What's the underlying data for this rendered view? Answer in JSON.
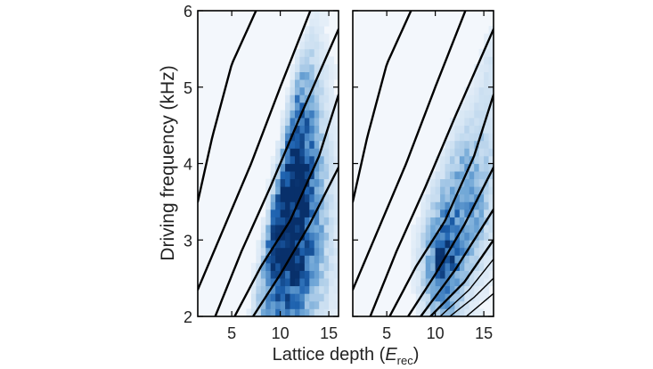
{
  "chart_data": {
    "type": "heatmap",
    "xlabel": "Lattice depth",
    "xlabel_sym": "E",
    "xlabel_sub": "rec",
    "ylabel": "Driving frequency (kHz)",
    "xlim": [
      1.5,
      16
    ],
    "ylim": [
      2,
      6
    ],
    "xticks": [
      5,
      10,
      15
    ],
    "yticks": [
      2,
      3,
      4,
      5,
      6
    ],
    "ytick_labels": [
      "2",
      "3",
      "4",
      "5",
      "6"
    ],
    "xtick_labels": [
      "5",
      "10",
      "15"
    ],
    "colormap": [
      "#eef4fb",
      "#c4dbef",
      "#6fa6d6",
      "#1f63b0",
      "#08306b"
    ],
    "line_color": "#000000",
    "grid_x_step": 0.5,
    "grid_y_step": 0.1,
    "panels": [
      {
        "name": "left",
        "curves": [
          {
            "x": [
              1.5,
              3,
              5,
              7.5
            ],
            "y": [
              3.5,
              4.35,
              5.3,
              6.0
            ]
          },
          {
            "x": [
              1.5,
              4,
              7,
              10,
              13.1
            ],
            "y": [
              2.35,
              3.1,
              4.0,
              5.0,
              6.0
            ]
          },
          {
            "x": [
              3.3,
              6,
              9,
              12,
              15.8
            ],
            "y": [
              2.0,
              2.85,
              3.7,
              4.6,
              5.7
            ]
          },
          {
            "x": [
              5.3,
              8,
              11,
              14,
              16
            ],
            "y": [
              2.0,
              2.65,
              3.25,
              4.1,
              4.9
            ]
          },
          {
            "x": [
              7.2,
              10,
              13,
              16
            ],
            "y": [
              2.0,
              2.55,
              3.2,
              3.95
            ]
          }
        ],
        "blobs": [
          {
            "x": 10.5,
            "y": 2.9,
            "sx": 2.6,
            "sy": 0.9,
            "a": 0.95
          },
          {
            "x": 11.5,
            "y": 4.3,
            "sx": 1.9,
            "sy": 1.0,
            "a": 0.75
          },
          {
            "x": 10.5,
            "y": 5.7,
            "sx": 1.0,
            "sy": 0.5,
            "a": 0.55
          }
        ],
        "bounds": [
          {
            "x": [
              1.5,
              4,
              7,
              10,
              13.1
            ],
            "y": [
              2.35,
              3.1,
              4.0,
              5.0,
              6.0
            ],
            "w": 0.5
          },
          {
            "x": [
              7,
              13.1
            ],
            "y": [
              2.0,
              6.0
            ],
            "w": 0.9
          }
        ]
      },
      {
        "name": "right",
        "curves": [
          {
            "x": [
              1.5,
              3,
              5,
              7.5
            ],
            "y": [
              3.5,
              4.35,
              5.3,
              6.0
            ]
          },
          {
            "x": [
              1.5,
              4,
              7,
              10,
              13.1
            ],
            "y": [
              2.35,
              3.1,
              4.0,
              5.0,
              6.0
            ]
          },
          {
            "x": [
              3.3,
              6,
              9,
              12,
              15.8
            ],
            "y": [
              2.0,
              2.85,
              3.7,
              4.6,
              5.7
            ]
          },
          {
            "x": [
              5.3,
              8,
              11,
              14,
              16
            ],
            "y": [
              2.0,
              2.65,
              3.25,
              4.1,
              4.9
            ]
          },
          {
            "x": [
              7.2,
              10,
              13,
              16
            ],
            "y": [
              2.0,
              2.55,
              3.2,
              3.95
            ]
          },
          {
            "x": [
              8.5,
              12,
              16
            ],
            "y": [
              2.0,
              2.6,
              3.4
            ]
          },
          {
            "x": [
              9.5,
              13,
              16
            ],
            "y": [
              2.0,
              2.45,
              3.0
            ]
          },
          {
            "x": [
              10.5,
              13.5,
              16
            ],
            "y": [
              2.0,
              2.35,
              2.75
            ]
          },
          {
            "x": [
              11.5,
              14,
              16
            ],
            "y": [
              2.0,
              2.25,
              2.5
            ]
          },
          {
            "x": [
              13.2,
              16
            ],
            "y": [
              2.0,
              2.3
            ]
          }
        ],
        "blobs": [
          {
            "x": 10.8,
            "y": 2.7,
            "sx": 1.4,
            "sy": 0.55,
            "a": 0.85
          },
          {
            "x": 13.5,
            "y": 3.6,
            "sx": 1.8,
            "sy": 0.7,
            "a": 0.55
          },
          {
            "x": 15.5,
            "y": 5.4,
            "sx": 1.2,
            "sy": 0.8,
            "a": 0.18
          }
        ],
        "bounds": [
          {
            "x": [
              3.3,
              6,
              9,
              12,
              15.8
            ],
            "y": [
              2.0,
              2.85,
              3.7,
              4.6,
              5.7
            ],
            "w": 0.6
          }
        ]
      }
    ]
  }
}
